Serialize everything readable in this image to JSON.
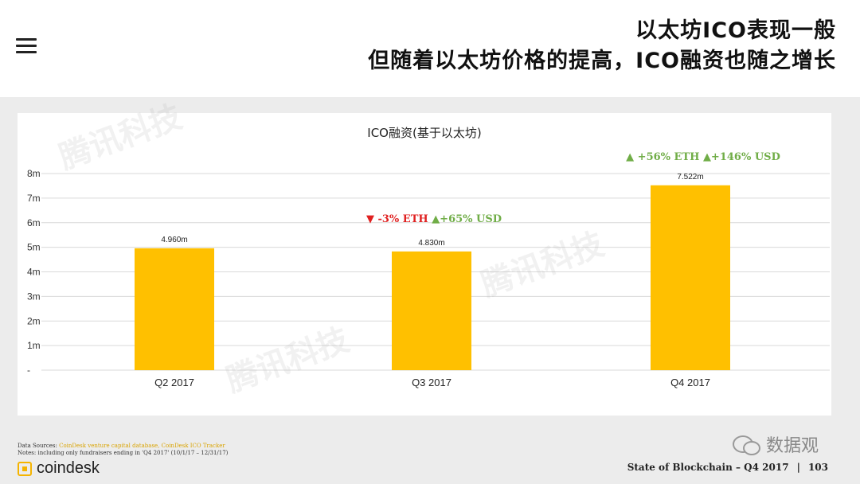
{
  "header": {
    "title_line1": "以太坊ICO表现一般",
    "title_line2": "但随着以太坊价格的提高，ICO融资也随之增长"
  },
  "chart_data": {
    "type": "bar",
    "title": "ICO融资(基于以太坊)",
    "categories": [
      "Q2 2017",
      "Q3 2017",
      "Q4 2017"
    ],
    "values": [
      4.96,
      4.83,
      7.522
    ],
    "value_labels": [
      "4.960m",
      "4.830m",
      "7.522m"
    ],
    "y_ticks": [
      0,
      1,
      2,
      3,
      4,
      5,
      6,
      7,
      8
    ],
    "y_tick_labels": [
      "-",
      "1m",
      "2m",
      "3m",
      "4m",
      "5m",
      "6m",
      "7m",
      "8m"
    ],
    "ylim": [
      0,
      8
    ],
    "grid": true,
    "bar_color": "#ffc000",
    "annotations": [
      {
        "category": "Q3 2017",
        "eth_symbol": "▼",
        "eth_text": "-3% ETH",
        "eth_color": "#e02020",
        "usd_symbol": "▲",
        "usd_text": "+65% USD",
        "usd_color": "#70ad47"
      },
      {
        "category": "Q4 2017",
        "eth_symbol": "▲",
        "eth_text": "+56% ETH",
        "eth_color": "#70ad47",
        "usd_symbol": "▲",
        "usd_text": "+146% USD",
        "usd_color": "#70ad47"
      }
    ]
  },
  "footer": {
    "sources_label": "Data Sources:",
    "sources_text": "CoinDesk venture capital database, CoinDesk ICO Tracker",
    "notes_text": "Notes: including only fundraisers ending in 'Q4 2017' (10/1/17 – 12/31/17)",
    "logo_text": "coindesk",
    "report_text": "State of Blockchain – Q4 2017",
    "page_number": "103",
    "wechat_text": "数据观"
  },
  "watermark_text": "腾讯科技",
  "colors": {
    "accent": "#ffc000",
    "up": "#70ad47",
    "down": "#e02020"
  }
}
